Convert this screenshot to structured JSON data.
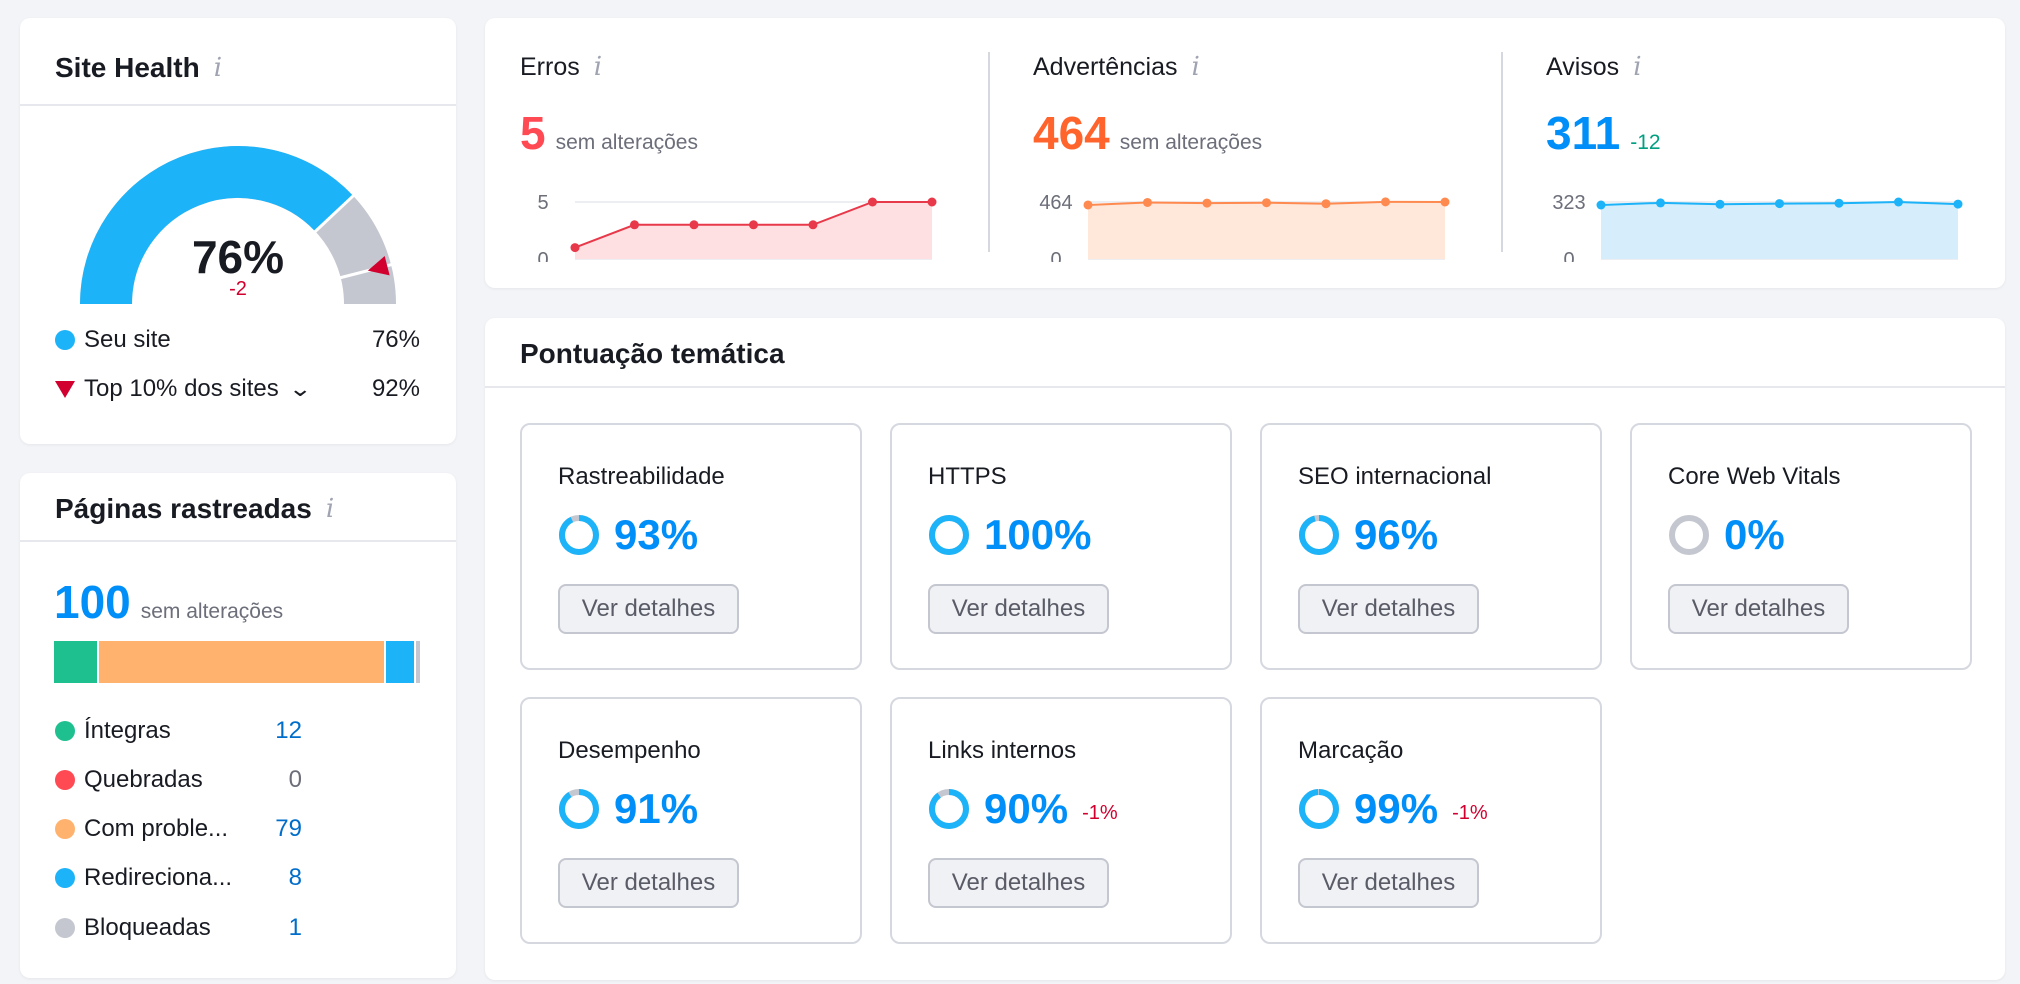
{
  "site_health": {
    "title": "Site Health",
    "info": "i",
    "value": "76%",
    "delta": "-2",
    "gauge_fraction": 0.76,
    "top10_fraction": 0.92,
    "legend": [
      {
        "label": "Seu site",
        "value": "76%"
      },
      {
        "label": "Top 10% dos sites",
        "value": "92%"
      }
    ]
  },
  "crawled_pages": {
    "title": "Páginas rastreadas",
    "info": "i",
    "total": "100",
    "total_status": "sem alterações",
    "rows": [
      {
        "label": "Íntegras",
        "value": "12",
        "color": "#1fc090"
      },
      {
        "label": "Quebradas",
        "value": "0",
        "color": "#ff4953"
      },
      {
        "label": "Com proble...",
        "value": "79",
        "color": "#ffb26e"
      },
      {
        "label": "Redireciona...",
        "value": "8",
        "color": "#1cb3f8"
      },
      {
        "label": "Bloqueadas",
        "value": "1",
        "color": "#c4c7cf"
      }
    ]
  },
  "issues": {
    "errors": {
      "label": "Erros",
      "info": "i",
      "value": "5",
      "status": "sem alterações",
      "color": "#ff4953",
      "y_ticks": [
        "5",
        "0"
      ],
      "points": [
        1,
        3,
        3,
        3,
        3,
        5,
        5
      ]
    },
    "warnings": {
      "label": "Advertências",
      "info": "i",
      "value": "464",
      "status": "sem alterações",
      "color": "#ff642d",
      "y_ticks": [
        "464",
        "0"
      ],
      "points": [
        440,
        460,
        455,
        458,
        450,
        465,
        464
      ]
    },
    "notices": {
      "label": "Avisos",
      "info": "i",
      "value": "311",
      "delta": "-12",
      "color": "#008ff8",
      "y_ticks": [
        "323",
        "0"
      ],
      "points": [
        306,
        318,
        310,
        314,
        316,
        323,
        311
      ]
    }
  },
  "thematic": {
    "title": "Pontuação temática",
    "button_label": "Ver detalhes",
    "tiles": [
      {
        "label": "Rastreabilidade",
        "score": "93%",
        "fraction": 0.93
      },
      {
        "label": "HTTPS",
        "score": "100%",
        "fraction": 1.0
      },
      {
        "label": "SEO internacional",
        "score": "96%",
        "fraction": 0.96
      },
      {
        "label": "Core Web Vitals",
        "score": "0%",
        "fraction": 0.0
      },
      {
        "label": "Desempenho",
        "score": "91%",
        "fraction": 0.91
      },
      {
        "label": "Links internos",
        "score": "90%",
        "change": "-1%",
        "fraction": 0.9
      },
      {
        "label": "Marcação",
        "score": "99%",
        "change": "-1%",
        "fraction": 0.99
      }
    ]
  }
}
